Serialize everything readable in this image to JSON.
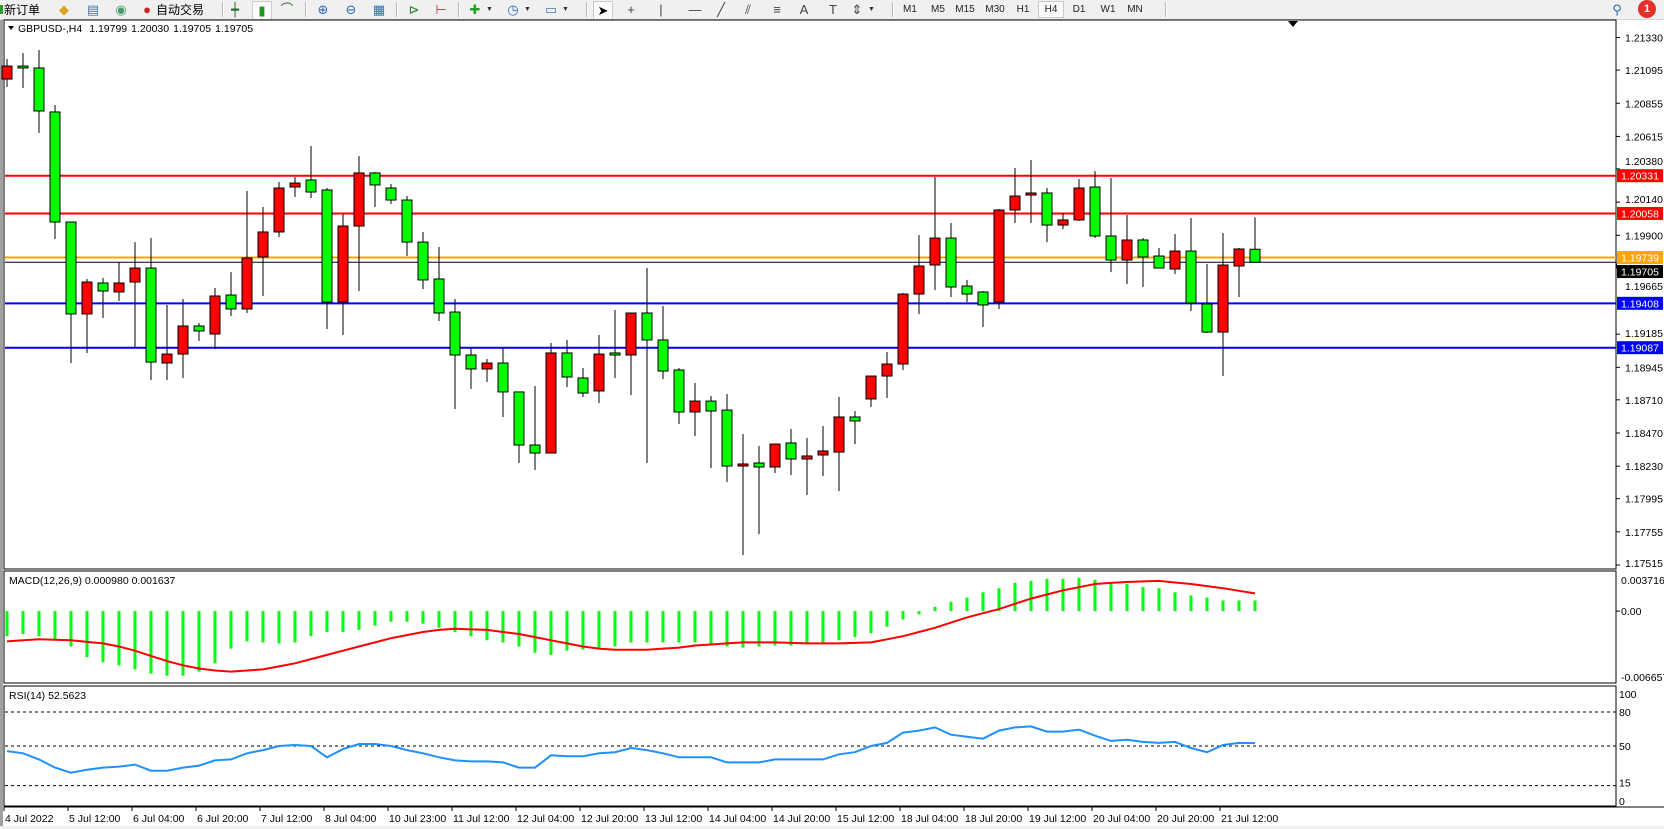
{
  "toolbar": {
    "new_order_label": "新订单",
    "autotrade_label": "自动交易",
    "timeframes": [
      "M1",
      "M5",
      "M15",
      "M30",
      "H1",
      "H4",
      "D1",
      "W1",
      "MN"
    ],
    "selected_timeframe": "H4",
    "icons": [
      "new-order-icon",
      "navigator-icon",
      "terminal-icon",
      "signals-icon",
      "autotrade-icon",
      "bar-chart-icon",
      "candlestick-icon",
      "line-chart-icon",
      "zoom-in-icon",
      "zoom-out-icon",
      "tile-windows-icon",
      "auto-scroll-icon",
      "chart-shift-icon",
      "indicators-icon",
      "periods-icon",
      "templates-icon",
      "cursor-icon",
      "crosshair-icon",
      "vertical-line-icon",
      "horizontal-line-icon",
      "trendline-icon",
      "equidistant-channel-icon",
      "fibonacci-icon",
      "text-icon",
      "text-label-icon",
      "arrows-icon",
      "search-icon",
      "notification-icon"
    ],
    "notification_count": "1"
  },
  "chart_header": {
    "symbol": "GBPUSD-,H4",
    "open": "1.19799",
    "high": "1.20030",
    "low": "1.19705",
    "close": "1.19705"
  },
  "price_axis": {
    "ticks": [
      "1.21330",
      "1.21095",
      "1.20855",
      "1.20615",
      "1.20380",
      "1.20140",
      "1.19900",
      "1.19665",
      "1.19185",
      "1.18945",
      "1.18710",
      "1.18470",
      "1.18230",
      "1.17995",
      "1.17755",
      "1.17515"
    ]
  },
  "levels": [
    {
      "price": "1.20331",
      "color": "#ff0000",
      "kind": "line"
    },
    {
      "price": "1.20058",
      "color": "#ff0000",
      "kind": "line"
    },
    {
      "price": "1.19705",
      "color": "#000000",
      "kind": "bid"
    },
    {
      "price": "1.19739",
      "color": "#ffa500",
      "kind": "line"
    },
    {
      "price": "1.19408",
      "color": "#0000ff",
      "kind": "line"
    },
    {
      "price": "1.19087",
      "color": "#0000ff",
      "kind": "line"
    }
  ],
  "colors": {
    "bull_candle": "#ff0000",
    "bear_candle": "#00ff00",
    "macd_histogram": "#00ff00",
    "macd_signal": "#ff0000",
    "rsi_line": "#1e90ff"
  },
  "macd": {
    "label": "MACD(12,26,9) 0.000980 0.001637",
    "axis_labels": [
      "0.003716",
      "0.00",
      "-0.006657"
    ],
    "range": [
      -0.006657,
      0.003716
    ]
  },
  "rsi": {
    "label": "RSI(14) 52.5623",
    "axis_labels": [
      "100",
      "80",
      "50",
      "15",
      "0"
    ],
    "levels": [
      80,
      50,
      15
    ],
    "range": [
      0,
      100
    ]
  },
  "time_labels": [
    "4 Jul 2022",
    "5 Jul 12:00",
    "6 Jul 04:00",
    "6 Jul 20:00",
    "7 Jul 12:00",
    "8 Jul 04:00",
    "10 Jul 23:00",
    "11 Jul 12:00",
    "12 Jul 04:00",
    "12 Jul 20:00",
    "13 Jul 12:00",
    "14 Jul 04:00",
    "14 Jul 20:00",
    "15 Jul 12:00",
    "18 Jul 04:00",
    "18 Jul 20:00",
    "19 Jul 12:00",
    "20 Jul 04:00",
    "20 Jul 20:00",
    "21 Jul 12:00"
  ],
  "chart_data": {
    "type": "candlestick",
    "symbol": "GBPUSD-",
    "timeframe": "H4",
    "ylim": [
      1.17515,
      1.2133
    ],
    "ohlc_format": [
      "open",
      "high",
      "low",
      "close"
    ],
    "candles": [
      [
        1.2103,
        1.21175,
        1.20973,
        1.21124
      ],
      [
        1.21124,
        1.21218,
        1.20965,
        1.2111
      ],
      [
        1.2111,
        1.2124,
        1.2064,
        1.20799
      ],
      [
        1.20792,
        1.20842,
        1.19873,
        1.19996
      ],
      [
        1.19996,
        1.19996,
        1.18976,
        1.19331
      ],
      [
        1.19331,
        1.19584,
        1.19049,
        1.19562
      ],
      [
        1.19555,
        1.19591,
        1.19302,
        1.19497
      ],
      [
        1.1949,
        1.19707,
        1.19425,
        1.19555
      ],
      [
        1.19562,
        1.19851,
        1.19092,
        1.19663
      ],
      [
        1.19663,
        1.1988,
        1.18853,
        1.18983
      ],
      [
        1.18976,
        1.19396,
        1.18853,
        1.19041
      ],
      [
        1.19041,
        1.19439,
        1.18868,
        1.19244
      ],
      [
        1.19244,
        1.19266,
        1.19135,
        1.19208
      ],
      [
        1.19186,
        1.19519,
        1.19077,
        1.19461
      ],
      [
        1.19468,
        1.19634,
        1.19316,
        1.19367
      ],
      [
        1.19367,
        1.2022,
        1.19338,
        1.19736
      ],
      [
        1.19743,
        1.20105,
        1.19461,
        1.19924
      ],
      [
        1.19924,
        1.20285,
        1.19888,
        1.20242
      ],
      [
        1.20249,
        1.20322,
        1.20177,
        1.20278
      ],
      [
        1.203,
        1.20546,
        1.2017,
        1.20213
      ],
      [
        1.20228,
        1.20242,
        1.19222,
        1.19417
      ],
      [
        1.19417,
        1.20054,
        1.19179,
        1.19967
      ],
      [
        1.19967,
        1.20473,
        1.19497,
        1.20351
      ],
      [
        1.20351,
        1.20358,
        1.20105,
        1.20264
      ],
      [
        1.20242,
        1.20271,
        1.20126,
        1.20155
      ],
      [
        1.20155,
        1.20184,
        1.1975,
        1.19851
      ],
      [
        1.19851,
        1.19924,
        1.19511,
        1.19577
      ],
      [
        1.19584,
        1.19815,
        1.1928,
        1.19338
      ],
      [
        1.19345,
        1.19439,
        1.18644,
        1.19034
      ],
      [
        1.19034,
        1.19085,
        1.18788,
        1.18933
      ],
      [
        1.18933,
        1.19005,
        1.18839,
        1.18976
      ],
      [
        1.18976,
        1.19085,
        1.18586,
        1.18767
      ],
      [
        1.18767,
        1.18767,
        1.18253,
        1.18383
      ],
      [
        1.18383,
        1.1881,
        1.18202,
        1.18325
      ],
      [
        1.18325,
        1.19121,
        1.18325,
        1.19049
      ],
      [
        1.19049,
        1.19143,
        1.18803,
        1.18875
      ],
      [
        1.18868,
        1.1894,
        1.1873,
        1.18759
      ],
      [
        1.18774,
        1.19179,
        1.18687,
        1.19041
      ],
      [
        1.19049,
        1.1936,
        1.18868,
        1.19034
      ],
      [
        1.19034,
        1.19338,
        1.18745,
        1.19338
      ],
      [
        1.19338,
        1.19663,
        1.18253,
        1.19143
      ],
      [
        1.19143,
        1.19389,
        1.18861,
        1.18918
      ],
      [
        1.18926,
        1.1894,
        1.18535,
        1.18622
      ],
      [
        1.18622,
        1.18832,
        1.18448,
        1.18701
      ],
      [
        1.18701,
        1.18738,
        1.18217,
        1.18629
      ],
      [
        1.18636,
        1.18752,
        1.18116,
        1.18231
      ],
      [
        1.18231,
        1.18463,
        1.17588,
        1.18246
      ],
      [
        1.18253,
        1.18376,
        1.17739,
        1.18224
      ],
      [
        1.18224,
        1.1839,
        1.18181,
        1.1839
      ],
      [
        1.18398,
        1.18499,
        1.18166,
        1.18282
      ],
      [
        1.18282,
        1.18434,
        1.18022,
        1.18304
      ],
      [
        1.18311,
        1.18521,
        1.18159,
        1.1834
      ],
      [
        1.18332,
        1.1873,
        1.1805,
        1.18586
      ],
      [
        1.18586,
        1.18629,
        1.1839,
        1.18557
      ],
      [
        1.18716,
        1.18882,
        1.18658,
        1.18882
      ],
      [
        1.18882,
        1.19056,
        1.18723,
        1.18969
      ],
      [
        1.18969,
        1.19483,
        1.18926,
        1.19475
      ],
      [
        1.19475,
        1.19902,
        1.19331,
        1.19678
      ],
      [
        1.19685,
        1.20322,
        1.19504,
        1.1988
      ],
      [
        1.1988,
        1.19989,
        1.19454,
        1.19526
      ],
      [
        1.19533,
        1.19577,
        1.19417,
        1.19475
      ],
      [
        1.1949,
        1.19497,
        1.19237,
        1.19396
      ],
      [
        1.19417,
        1.2009,
        1.19367,
        1.20083
      ],
      [
        1.20083,
        1.20387,
        1.19989,
        1.20184
      ],
      [
        1.20191,
        1.20445,
        1.19989,
        1.20206
      ],
      [
        1.20206,
        1.20242,
        1.19851,
        1.19974
      ],
      [
        1.19974,
        1.20061,
        1.19945,
        1.20011
      ],
      [
        1.20011,
        1.20307,
        1.20003,
        1.20242
      ],
      [
        1.20249,
        1.20365,
        1.1988,
        1.19895
      ],
      [
        1.19895,
        1.20314,
        1.19634,
        1.19721
      ],
      [
        1.19721,
        1.20047,
        1.19548,
        1.19866
      ],
      [
        1.19866,
        1.1988,
        1.19526,
        1.19743
      ],
      [
        1.1975,
        1.19808,
        1.19663,
        1.19663
      ],
      [
        1.19656,
        1.19909,
        1.1962,
        1.19786
      ],
      [
        1.19786,
        1.20025,
        1.19352,
        1.1941
      ],
      [
        1.19403,
        1.19692,
        1.19193,
        1.192
      ],
      [
        1.192,
        1.19916,
        1.18882,
        1.19685
      ],
      [
        1.19678,
        1.19808,
        1.19454,
        1.19801
      ],
      [
        1.19799,
        1.2003,
        1.19705,
        1.19705
      ]
    ],
    "macd_histogram": [
      -0.00232,
      -0.00212,
      -0.00232,
      -0.0027,
      -0.00328,
      -0.00425,
      -0.00473,
      -0.00502,
      -0.0054,
      -0.00579,
      -0.00598,
      -0.00598,
      -0.0056,
      -0.00483,
      -0.00347,
      -0.0028,
      -0.0029,
      -0.00299,
      -0.0029,
      -0.00232,
      -0.00193,
      -0.00193,
      -0.00174,
      -0.00135,
      -0.00097,
      -0.00097,
      -0.00116,
      -0.00154,
      -0.00193,
      -0.00232,
      -0.0027,
      -0.0029,
      -0.00328,
      -0.00386,
      -0.00405,
      -0.00367,
      -0.00357,
      -0.00338,
      -0.00328,
      -0.0029,
      -0.0029,
      -0.0029,
      -0.0029,
      -0.0029,
      -0.00309,
      -0.00328,
      -0.00338,
      -0.00328,
      -0.00318,
      -0.00318,
      -0.00299,
      -0.0029,
      -0.0027,
      -0.00241,
      -0.00203,
      -0.00145,
      -0.00077,
      -0.00029,
      0.00039,
      0.00087,
      0.00125,
      0.00174,
      0.00212,
      0.00261,
      0.0028,
      0.00299,
      0.00299,
      0.00309,
      0.0029,
      0.0027,
      0.00251,
      0.00222,
      0.00212,
      0.00174,
      0.00145,
      0.00125,
      0.00098,
      0.00098,
      0.00098
    ],
    "macd_signal": [
      -0.0028,
      -0.0027,
      -0.00261,
      -0.00265,
      -0.0027,
      -0.00285,
      -0.00299,
      -0.00328,
      -0.00367,
      -0.00415,
      -0.00463,
      -0.00502,
      -0.00531,
      -0.0055,
      -0.0056,
      -0.0055,
      -0.0054,
      -0.00512,
      -0.00483,
      -0.00444,
      -0.00405,
      -0.00367,
      -0.00328,
      -0.0029,
      -0.00251,
      -0.00222,
      -0.00193,
      -0.00174,
      -0.00164,
      -0.00169,
      -0.00174,
      -0.00193,
      -0.00212,
      -0.00241,
      -0.0027,
      -0.00299,
      -0.00328,
      -0.00347,
      -0.00357,
      -0.00357,
      -0.00357,
      -0.00347,
      -0.00338,
      -0.00318,
      -0.00309,
      -0.00299,
      -0.0029,
      -0.0029,
      -0.0029,
      -0.00294,
      -0.00299,
      -0.00299,
      -0.00299,
      -0.00294,
      -0.0029,
      -0.00261,
      -0.00232,
      -0.00193,
      -0.00154,
      -0.00106,
      -0.00058,
      -0.00019,
      0.00019,
      0.00068,
      0.00116,
      0.00154,
      0.00193,
      0.00222,
      0.00251,
      0.00261,
      0.0027,
      0.00275,
      0.0028,
      0.00265,
      0.00251,
      0.00232,
      0.00212,
      0.00188,
      0.001637
    ],
    "rsi": [
      45.5,
      43.6,
      38.2,
      30.9,
      26.4,
      29.1,
      30.9,
      31.8,
      33.6,
      28.2,
      28.2,
      30.9,
      32.7,
      37.3,
      38.2,
      43.6,
      46.4,
      50.0,
      50.9,
      50.0,
      40.0,
      47.3,
      51.8,
      51.8,
      50.0,
      46.4,
      43.6,
      40.0,
      37.3,
      36.4,
      36.4,
      35.5,
      30.9,
      30.9,
      41.8,
      40.9,
      40.9,
      43.6,
      44.5,
      48.2,
      46.4,
      43.6,
      40.0,
      40.0,
      40.0,
      35.5,
      35.5,
      35.5,
      38.2,
      38.2,
      38.2,
      38.2,
      42.7,
      44.5,
      50.0,
      52.7,
      61.8,
      63.6,
      66.4,
      60.0,
      58.2,
      56.4,
      63.6,
      66.4,
      67.3,
      62.7,
      62.7,
      64.5,
      59.1,
      54.5,
      55.5,
      53.6,
      52.7,
      53.6,
      48.2,
      44.5,
      50.9,
      52.7,
      52.5623
    ]
  }
}
